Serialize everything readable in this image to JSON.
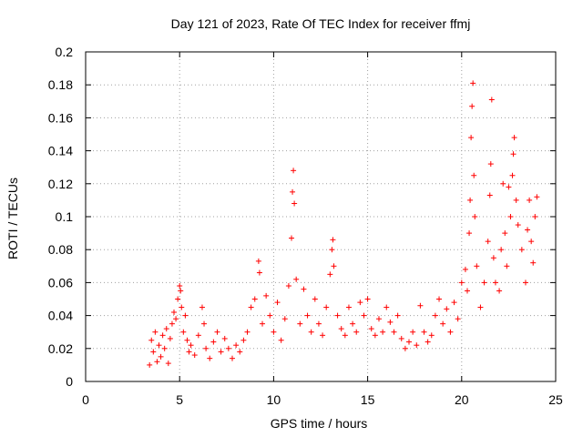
{
  "chart_data": {
    "type": "scatter",
    "title": "Day 121 of 2023, Rate Of TEC Index for receiver ffmj",
    "xlabel": "GPS time / hours",
    "ylabel": "ROTI / TECUs",
    "xlim": [
      0,
      25
    ],
    "ylim": [
      0,
      0.2
    ],
    "xticks": [
      "0",
      "5",
      "10",
      "15",
      "20",
      "25"
    ],
    "yticks": [
      "0",
      "0.02",
      "0.04",
      "0.06",
      "0.08",
      "0.1",
      "0.12",
      "0.14",
      "0.16",
      "0.18",
      "0.2"
    ],
    "grid": true,
    "marker": "+",
    "series": [
      {
        "color": "#ff0000",
        "points": [
          [
            3.4,
            0.01
          ],
          [
            3.5,
            0.025
          ],
          [
            3.6,
            0.018
          ],
          [
            3.7,
            0.03
          ],
          [
            3.8,
            0.012
          ],
          [
            3.9,
            0.022
          ],
          [
            4.0,
            0.015
          ],
          [
            4.1,
            0.028
          ],
          [
            4.2,
            0.02
          ],
          [
            4.3,
            0.032
          ],
          [
            4.4,
            0.011
          ],
          [
            4.5,
            0.026
          ],
          [
            4.6,
            0.035
          ],
          [
            4.7,
            0.042
          ],
          [
            4.8,
            0.038
          ],
          [
            4.9,
            0.05
          ],
          [
            5.0,
            0.058
          ],
          [
            5.05,
            0.055
          ],
          [
            5.1,
            0.045
          ],
          [
            5.2,
            0.03
          ],
          [
            5.3,
            0.04
          ],
          [
            5.4,
            0.025
          ],
          [
            5.5,
            0.018
          ],
          [
            5.6,
            0.022
          ],
          [
            5.8,
            0.016
          ],
          [
            6.0,
            0.028
          ],
          [
            6.2,
            0.045
          ],
          [
            6.3,
            0.035
          ],
          [
            6.4,
            0.02
          ],
          [
            6.6,
            0.014
          ],
          [
            6.8,
            0.024
          ],
          [
            7.0,
            0.03
          ],
          [
            7.2,
            0.018
          ],
          [
            7.4,
            0.026
          ],
          [
            7.6,
            0.02
          ],
          [
            7.8,
            0.014
          ],
          [
            8.0,
            0.022
          ],
          [
            8.2,
            0.018
          ],
          [
            8.4,
            0.025
          ],
          [
            8.6,
            0.03
          ],
          [
            8.8,
            0.045
          ],
          [
            9.0,
            0.05
          ],
          [
            9.2,
            0.073
          ],
          [
            9.25,
            0.066
          ],
          [
            9.4,
            0.035
          ],
          [
            9.6,
            0.052
          ],
          [
            9.8,
            0.04
          ],
          [
            10.0,
            0.03
          ],
          [
            10.2,
            0.048
          ],
          [
            10.4,
            0.025
          ],
          [
            10.6,
            0.038
          ],
          [
            10.8,
            0.058
          ],
          [
            10.95,
            0.087
          ],
          [
            11.0,
            0.115
          ],
          [
            11.05,
            0.128
          ],
          [
            11.1,
            0.108
          ],
          [
            11.2,
            0.062
          ],
          [
            11.4,
            0.035
          ],
          [
            11.6,
            0.056
          ],
          [
            11.8,
            0.04
          ],
          [
            12.0,
            0.03
          ],
          [
            12.2,
            0.05
          ],
          [
            12.4,
            0.035
          ],
          [
            12.6,
            0.028
          ],
          [
            12.8,
            0.045
          ],
          [
            13.0,
            0.065
          ],
          [
            13.1,
            0.08
          ],
          [
            13.15,
            0.086
          ],
          [
            13.2,
            0.07
          ],
          [
            13.4,
            0.04
          ],
          [
            13.6,
            0.032
          ],
          [
            13.8,
            0.028
          ],
          [
            14.0,
            0.045
          ],
          [
            14.2,
            0.035
          ],
          [
            14.4,
            0.03
          ],
          [
            14.6,
            0.048
          ],
          [
            14.8,
            0.04
          ],
          [
            15.0,
            0.05
          ],
          [
            15.2,
            0.032
          ],
          [
            15.4,
            0.028
          ],
          [
            15.6,
            0.038
          ],
          [
            15.8,
            0.03
          ],
          [
            16.0,
            0.045
          ],
          [
            16.2,
            0.036
          ],
          [
            16.4,
            0.03
          ],
          [
            16.6,
            0.04
          ],
          [
            16.8,
            0.026
          ],
          [
            17.0,
            0.02
          ],
          [
            17.2,
            0.024
          ],
          [
            17.4,
            0.03
          ],
          [
            17.6,
            0.022
          ],
          [
            17.8,
            0.046
          ],
          [
            18.0,
            0.03
          ],
          [
            18.2,
            0.024
          ],
          [
            18.4,
            0.028
          ],
          [
            18.6,
            0.04
          ],
          [
            18.8,
            0.05
          ],
          [
            19.0,
            0.035
          ],
          [
            19.2,
            0.044
          ],
          [
            19.4,
            0.03
          ],
          [
            19.6,
            0.048
          ],
          [
            19.8,
            0.038
          ],
          [
            20.0,
            0.06
          ],
          [
            20.2,
            0.068
          ],
          [
            20.3,
            0.055
          ],
          [
            20.4,
            0.09
          ],
          [
            20.45,
            0.11
          ],
          [
            20.5,
            0.148
          ],
          [
            20.55,
            0.167
          ],
          [
            20.6,
            0.181
          ],
          [
            20.65,
            0.125
          ],
          [
            20.7,
            0.1
          ],
          [
            20.8,
            0.07
          ],
          [
            21.0,
            0.045
          ],
          [
            21.2,
            0.06
          ],
          [
            21.4,
            0.085
          ],
          [
            21.5,
            0.113
          ],
          [
            21.55,
            0.132
          ],
          [
            21.6,
            0.171
          ],
          [
            21.7,
            0.075
          ],
          [
            21.8,
            0.06
          ],
          [
            22.0,
            0.055
          ],
          [
            22.1,
            0.08
          ],
          [
            22.2,
            0.12
          ],
          [
            22.3,
            0.09
          ],
          [
            22.4,
            0.07
          ],
          [
            22.5,
            0.118
          ],
          [
            22.6,
            0.1
          ],
          [
            22.7,
            0.125
          ],
          [
            22.75,
            0.138
          ],
          [
            22.8,
            0.148
          ],
          [
            22.9,
            0.11
          ],
          [
            23.0,
            0.095
          ],
          [
            23.2,
            0.08
          ],
          [
            23.4,
            0.06
          ],
          [
            23.5,
            0.092
          ],
          [
            23.6,
            0.11
          ],
          [
            23.7,
            0.085
          ],
          [
            23.8,
            0.072
          ],
          [
            23.9,
            0.1
          ],
          [
            24.0,
            0.112
          ]
        ]
      }
    ]
  }
}
